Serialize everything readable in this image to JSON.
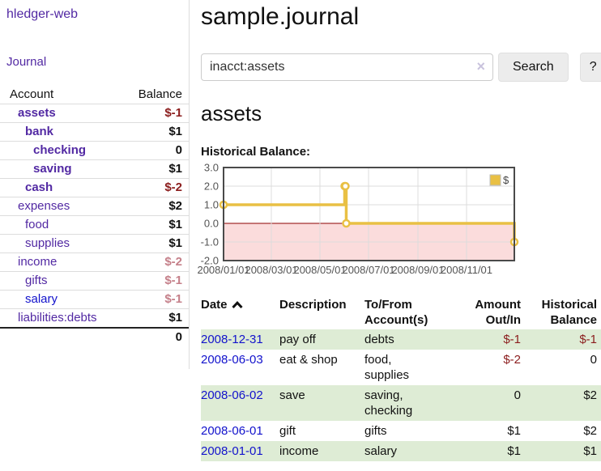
{
  "app_title": "hledger-web",
  "sidebar": {
    "journal_link": "Journal",
    "table": {
      "account_header": "Account",
      "balance_header": "Balance",
      "accounts": [
        {
          "name": "assets",
          "indent": 1,
          "bold": true,
          "link": "visited",
          "balance": "$-1",
          "balance_class": "neg"
        },
        {
          "name": "bank",
          "indent": 2,
          "bold": true,
          "link": "visited",
          "balance": "$1",
          "balance_class": ""
        },
        {
          "name": "checking",
          "indent": 3,
          "bold": true,
          "link": "visited",
          "balance": "0",
          "balance_class": ""
        },
        {
          "name": "saving",
          "indent": 3,
          "bold": true,
          "link": "visited",
          "balance": "$1",
          "balance_class": ""
        },
        {
          "name": "cash",
          "indent": 2,
          "bold": true,
          "link": "visited",
          "balance": "$-2",
          "balance_class": "neg"
        },
        {
          "name": "expenses",
          "indent": 1,
          "bold": false,
          "link": "visited",
          "balance": "$2",
          "balance_class": ""
        },
        {
          "name": "food",
          "indent": 2,
          "bold": false,
          "link": "visited",
          "balance": "$1",
          "balance_class": ""
        },
        {
          "name": "supplies",
          "indent": 2,
          "bold": false,
          "link": "visited",
          "balance": "$1",
          "balance_class": ""
        },
        {
          "name": "income",
          "indent": 1,
          "bold": false,
          "link": "visited",
          "balance": "$-2",
          "balance_class": "muted"
        },
        {
          "name": "gifts",
          "indent": 2,
          "bold": false,
          "link": "visited",
          "balance": "$-1",
          "balance_class": "muted"
        },
        {
          "name": "salary",
          "indent": 2,
          "bold": false,
          "link": "new",
          "balance": "$-1",
          "balance_class": "muted"
        },
        {
          "name": "liabilities:debts",
          "indent": 1,
          "bold": false,
          "link": "visited",
          "balance": "$1",
          "balance_class": ""
        }
      ],
      "total": "0"
    }
  },
  "main": {
    "title": "sample.journal",
    "search": {
      "value": "inacct:assets",
      "clear_icon": "×",
      "button": "Search",
      "help": "?"
    },
    "account_heading": "assets",
    "chart_title": "Historical Balance:"
  },
  "chart_data": {
    "type": "line",
    "step": true,
    "title": "Historical Balance:",
    "series": [
      {
        "name": "$",
        "color": "#e9c044",
        "points": [
          [
            "2008-01-01",
            1
          ],
          [
            "2008-06-01",
            2
          ],
          [
            "2008-06-02",
            2
          ],
          [
            "2008-06-03",
            0
          ],
          [
            "2008-12-31",
            -1
          ]
        ]
      }
    ],
    "x_range": [
      "2008-01-01",
      "2008-12-31"
    ],
    "ylim": [
      -2,
      3
    ],
    "yticks": [
      -2,
      -1,
      0,
      1,
      2,
      3
    ],
    "xticks": [
      "2008/01/01",
      "2008/03/01",
      "2008/05/01",
      "2008/07/01",
      "2008/09/01",
      "2008/11/01"
    ],
    "legend_position": "top-right",
    "grid": true,
    "negative_fill": "#fbdcdc",
    "zero_line_color": "#8b0000",
    "grid_color": "#dcdcdc",
    "border_color": "#4a4a4a"
  },
  "register": {
    "columns": [
      {
        "label": "Date",
        "sort": "asc"
      },
      {
        "label": "Description"
      },
      {
        "label": "To/From Account(s)"
      },
      {
        "label": "Amount Out/In"
      },
      {
        "label": "Historical Balance"
      }
    ],
    "rows": [
      {
        "date": "2008-12-31",
        "description": "pay off",
        "accounts": "debts",
        "amount": "$-1",
        "amount_class": "neg",
        "balance": "$-1",
        "balance_class": "neg"
      },
      {
        "date": "2008-06-03",
        "description": "eat & shop",
        "accounts": "food, supplies",
        "amount": "$-2",
        "amount_class": "neg",
        "balance": "0",
        "balance_class": ""
      },
      {
        "date": "2008-06-02",
        "description": "save",
        "accounts": "saving, checking",
        "amount": "0",
        "amount_class": "",
        "balance": "$2",
        "balance_class": ""
      },
      {
        "date": "2008-06-01",
        "description": "gift",
        "accounts": "gifts",
        "amount": "$1",
        "amount_class": "",
        "balance": "$2",
        "balance_class": ""
      },
      {
        "date": "2008-01-01",
        "description": "income",
        "accounts": "salary",
        "amount": "$1",
        "amount_class": "",
        "balance": "$1",
        "balance_class": ""
      }
    ]
  }
}
